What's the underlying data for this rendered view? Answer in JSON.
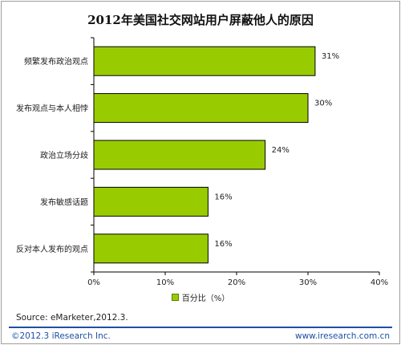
{
  "chart_data": {
    "type": "bar",
    "orientation": "horizontal",
    "title": "2012年美国社交网站用户屏蔽他人的原因",
    "categories": [
      "频繁发布政治观点",
      "发布观点与本人相悖",
      "政治立场分歧",
      "发布敏感话题",
      "反对本人发布的观点"
    ],
    "series": [
      {
        "name": "百分比（%）",
        "values": [
          31,
          30,
          24,
          16,
          16
        ],
        "color": "#99cc00"
      }
    ],
    "value_labels": [
      "31%",
      "30%",
      "24%",
      "16%",
      "16%"
    ],
    "xlim": [
      0,
      40
    ],
    "xticks": [
      "0%",
      "10%",
      "20%",
      "30%",
      "40%"
    ],
    "xlabel": "",
    "ylabel": "",
    "grid": false,
    "legend_position": "bottom"
  },
  "legend": {
    "label": "百分比（%）"
  },
  "footer": {
    "source": "Source: eMarketer,2012.3.",
    "copyright": "©2012.3 iResearch Inc.",
    "website": "www.iresearch.com.cn"
  }
}
